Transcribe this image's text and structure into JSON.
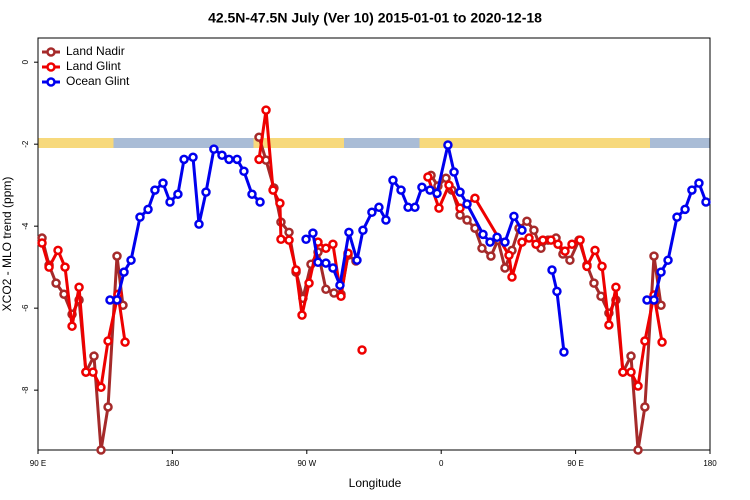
{
  "chart_data": {
    "type": "line",
    "title": "42.5N-47.5N July (Ver 10)   2015-01-01 to 2020-12-18",
    "x_label": "Longitude",
    "y_label": "XCO2 - MLO trend (ppm)",
    "xlim": [
      90,
      540
    ],
    "ylim": [
      -9.46,
      0.59
    ],
    "xticks": [
      {
        "value": 90,
        "label": "90 E"
      },
      180,
      {
        "value": 270,
        "label": "90 W"
      },
      {
        "value": 360,
        "label": "0"
      },
      {
        "value": 450,
        "label": "90 E"
      },
      {
        "value": 540,
        "label": "180"
      }
    ],
    "yticks": [
      0,
      -2,
      -4,
      -6,
      -8
    ],
    "legend": "top-left",
    "series": [
      {
        "name": "Land Nadir",
        "color": "#a52a2a",
        "x": [
          92.7,
          97.4,
          102.1,
          107.4,
          112.8,
          117.5,
          122.1,
          127.5,
          132.2,
          136.9,
          142.9,
          146.9,
          null,
          238.0,
          242.7,
          248.0,
          252.7,
          258.1,
          262.8,
          267.4,
          272.8,
          277.5,
          282.8,
          288.2,
          292.9,
          297.6,
          302.9,
          null,
          353.2,
          357.8,
          363.2,
          367.2,
          372.6,
          377.3,
          382.6,
          387.3,
          393.3,
          398.0,
          402.7,
          407.4,
          412.1,
          417.4,
          422.1,
          426.8,
          431.5,
          436.9,
          441.5,
          446.2,
          452.3,
          457.6,
          462.3,
          467.0,
          472.3,
          477.0,
          481.7,
          487.1,
          491.8,
          496.4,
          502.5,
          507.2
        ],
        "values": [
          -4.29,
          -4.95,
          -5.39,
          -5.66,
          -6.15,
          -5.8,
          -7.56,
          -7.17,
          -9.46,
          -8.41,
          -4.73,
          -5.93,
          null,
          -1.83,
          -2.39,
          -3.07,
          -3.9,
          -4.15,
          -5.12,
          -5.76,
          -4.93,
          -4.63,
          -5.54,
          -5.63,
          -5.66,
          -4.71,
          -4.85,
          null,
          -2.76,
          -3.02,
          -2.83,
          -3.12,
          -3.73,
          -3.85,
          -4.05,
          -4.54,
          -4.73,
          -4.34,
          -5.02,
          -4.59,
          -4.05,
          -3.88,
          -4.1,
          -4.54,
          -4.34,
          -4.29,
          -4.68,
          -4.83,
          -4.34,
          -4.95,
          -5.39,
          -5.71,
          -6.12,
          -5.8,
          -7.56,
          -7.17,
          -9.46,
          -8.41,
          -4.73,
          -5.93
        ]
      },
      {
        "name": "Land Glint",
        "color": "#ee0000",
        "x": [
          92.7,
          97.4,
          103.4,
          108.1,
          112.8,
          117.5,
          122.1,
          126.8,
          132.2,
          136.9,
          143.6,
          148.3,
          null,
          238.0,
          242.7,
          247.4,
          252.0,
          252.7,
          258.1,
          262.8,
          266.8,
          271.5,
          277.5,
          282.8,
          287.5,
          292.9,
          297.6,
          null,
          307.0,
          null,
          351.1,
          358.5,
          365.2,
          372.6,
          382.6,
          405.4,
          407.4,
          414.1,
          418.8,
          423.5,
          428.1,
          433.5,
          438.2,
          442.9,
          447.6,
          453.0,
          457.6,
          463.0,
          467.7,
          472.3,
          477.0,
          481.7,
          487.1,
          491.8,
          496.4,
          502.5,
          507.9
        ],
        "values": [
          -4.41,
          -5.0,
          -4.59,
          -5.0,
          -6.44,
          -5.49,
          -7.56,
          -7.56,
          -7.93,
          -6.8,
          -5.66,
          -6.83,
          null,
          -2.37,
          -1.17,
          -3.12,
          -3.44,
          -4.32,
          -4.34,
          -5.07,
          -6.17,
          -5.39,
          -4.39,
          -4.54,
          -4.44,
          -5.71,
          -4.66,
          null,
          -7.02,
          null,
          -2.8,
          -3.56,
          -3.0,
          -3.56,
          -3.32,
          -4.71,
          -5.24,
          -4.39,
          -4.29,
          -4.44,
          -4.34,
          -4.34,
          -4.44,
          -4.61,
          -4.44,
          -4.34,
          -4.98,
          -4.59,
          -4.98,
          -6.41,
          -5.49,
          -7.56,
          -7.56,
          -7.9,
          -6.8,
          -5.68,
          -6.83
        ]
      },
      {
        "name": "Ocean Glint",
        "color": "#0000ee",
        "x": [
          138.2,
          142.9,
          147.6,
          152.3,
          158.3,
          163.7,
          168.3,
          173.7,
          178.4,
          183.7,
          187.8,
          193.8,
          197.8,
          202.5,
          207.8,
          213.2,
          217.9,
          223.3,
          227.9,
          233.3,
          238.7,
          null,
          269.5,
          274.1,
          277.5,
          282.8,
          287.5,
          292.2,
          298.2,
          303.6,
          307.6,
          313.6,
          318.3,
          323.0,
          327.7,
          333.1,
          337.8,
          342.4,
          347.1,
          352.5,
          357.2,
          364.5,
          368.6,
          372.6,
          377.3,
          388.0,
          392.7,
          397.4,
          402.7,
          408.7,
          414.1,
          null,
          434.2,
          437.5,
          442.2,
          null,
          497.8,
          502.5,
          507.2,
          511.9,
          517.9,
          523.3,
          527.9,
          532.6,
          537.3
        ],
        "values": [
          -5.8,
          -5.8,
          -5.12,
          -4.83,
          -3.78,
          -3.59,
          -3.12,
          -2.95,
          -3.41,
          -3.22,
          -2.37,
          -2.32,
          -3.95,
          -3.17,
          -2.12,
          -2.27,
          -2.37,
          -2.37,
          -2.66,
          -3.22,
          -3.41,
          null,
          -4.32,
          -4.17,
          -4.88,
          -4.9,
          -5.02,
          -5.44,
          -4.15,
          -4.83,
          -4.1,
          -3.66,
          -3.54,
          -3.85,
          -2.88,
          -3.12,
          -3.54,
          -3.54,
          -3.05,
          -3.12,
          -3.2,
          -2.02,
          -2.68,
          -3.17,
          -3.46,
          -4.2,
          -4.39,
          -4.27,
          -4.39,
          -3.76,
          -4.1,
          null,
          -5.07,
          -5.59,
          -7.07,
          null,
          -5.8,
          -5.8,
          -5.12,
          -4.83,
          -3.78,
          -3.59,
          -3.12,
          -2.95,
          -3.41
        ]
      }
    ]
  }
}
